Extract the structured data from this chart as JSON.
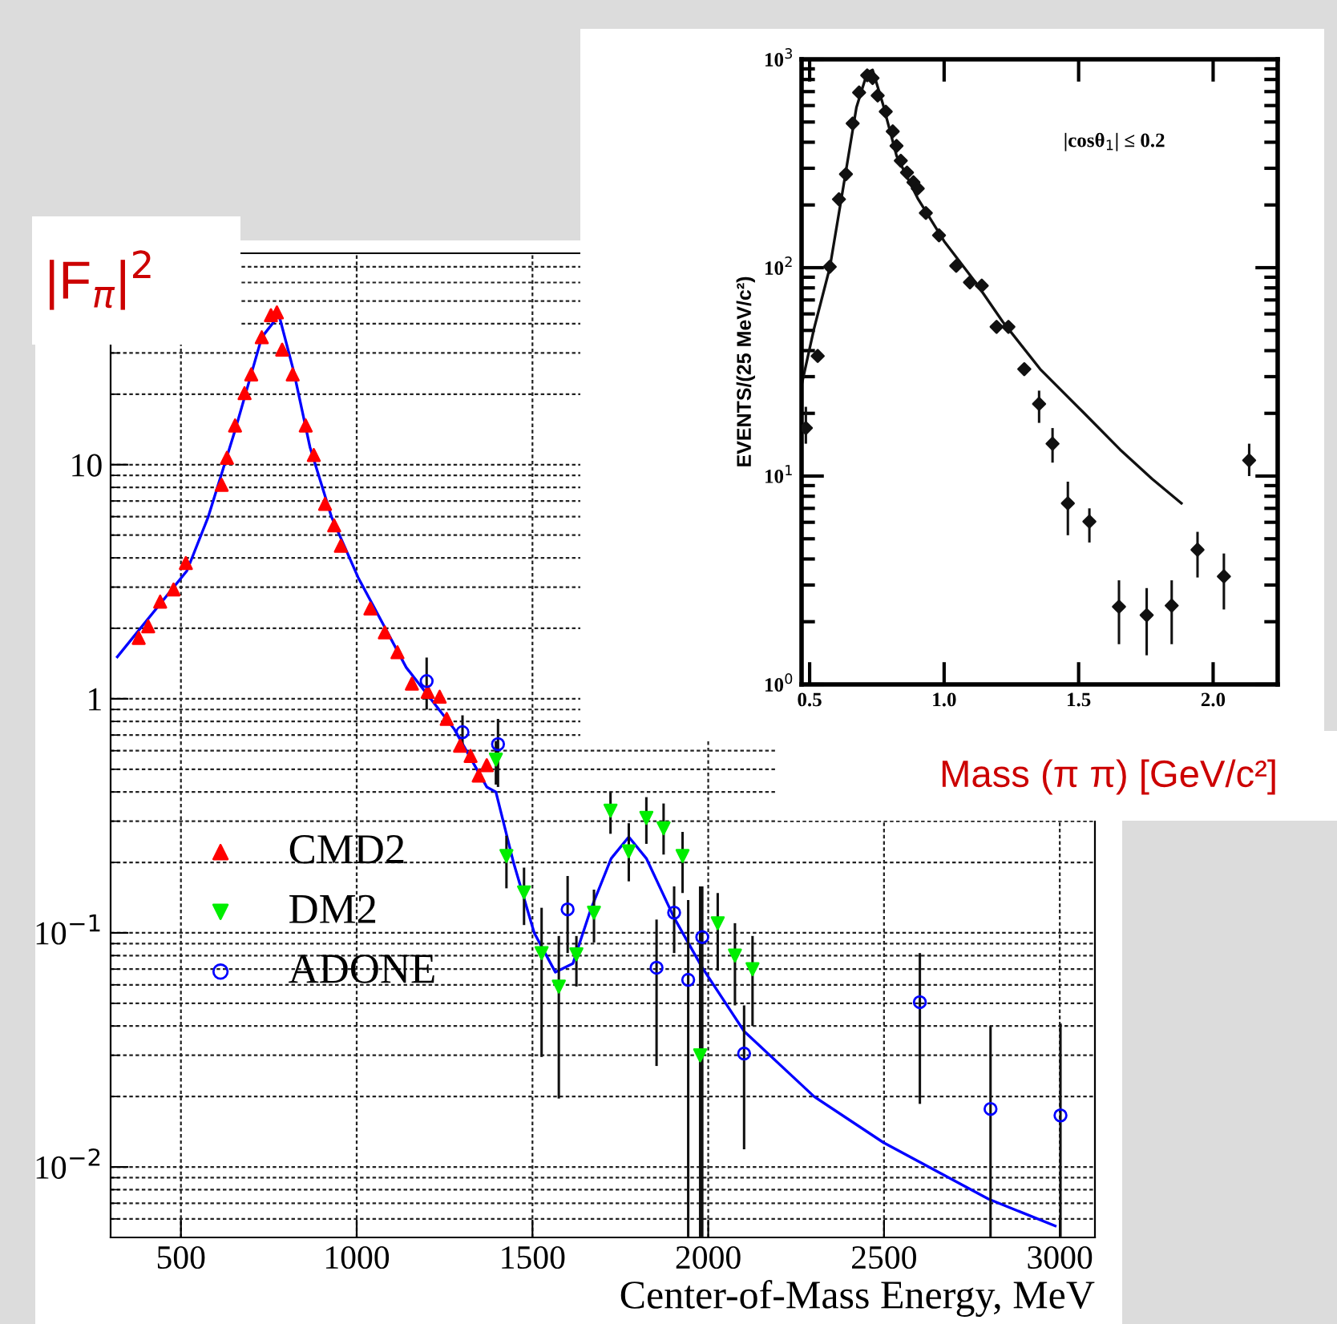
{
  "chart_data": [
    {
      "type": "scatter",
      "ylabel": "|F$_{π}$|$^{2}$",
      "xlabel": "Center-of-Mass Energy, MeV",
      "log": "y",
      "xlim": [
        300,
        3100
      ],
      "ylim": [
        0.005,
        80
      ],
      "xticks": [
        500,
        1000,
        1500,
        2000,
        2500,
        3000
      ],
      "yticks": [
        {
          "value": 0.01,
          "label": "10$^{−2}$"
        },
        {
          "value": 0.1,
          "label": "10$^{−1}$"
        },
        1,
        10
      ],
      "grid": true,
      "legend": "left",
      "series": [
        {
          "name": "CMD2",
          "marker": "triangle",
          "color": "#ff0000",
          "x": [
            380,
            407,
            441,
            479,
            514,
            616,
            631,
            654,
            681,
            700,
            730,
            756,
            773,
            788,
            818,
            855,
            878,
            910,
            936,
            955,
            1039,
            1080,
            1116,
            1157,
            1202,
            1236,
            1256,
            1294,
            1324,
            1347,
            1370
          ],
          "values": [
            1.82,
            2.04,
            2.6,
            2.93,
            3.8,
            8.2,
            10.7,
            14.7,
            20.2,
            24.3,
            35,
            43.5,
            44.7,
            31,
            24.3,
            14.7,
            11,
            6.8,
            5.5,
            4.5,
            2.43,
            1.92,
            1.58,
            1.16,
            1.07,
            1.02,
            0.82,
            0.63,
            0.57,
            0.47,
            0.52
          ]
        },
        {
          "name": "DM2",
          "marker": "triangle_down",
          "color": "#00ee00",
          "x": [
            1396,
            1426,
            1476,
            1526,
            1575,
            1625,
            1675,
            1722,
            1774,
            1824,
            1873,
            1927,
            1977,
            2027,
            2076,
            2126
          ],
          "values": [
            0.55,
            0.213,
            0.149,
            0.082,
            0.059,
            0.081,
            0.122,
            0.333,
            0.223,
            0.31,
            0.28,
            0.213,
            0.03,
            0.11,
            0.08,
            0.07
          ],
          "errors": [
            [
              0.43,
              0.66
            ],
            [
              0.155,
              0.26
            ],
            [
              0.108,
              0.19
            ],
            [
              0.0295,
              0.128
            ],
            [
              0.0196,
              0.097
            ],
            [
              0.059,
              0.097
            ],
            [
              0.091,
              0.153
            ],
            [
              0.265,
              0.4
            ],
            [
              0.166,
              0.294
            ],
            [
              0.24,
              0.38
            ],
            [
              0.216,
              0.357
            ],
            [
              0.148,
              0.27
            ],
            [
              0.005,
              0.158
            ],
            [
              0.069,
              0.148
            ],
            [
              0.049,
              0.11
            ],
            [
              0.04,
              0.097
            ]
          ]
        },
        {
          "name": "ADONE",
          "marker": "circle",
          "color": "#0000ff",
          "x": [
            1199,
            1301,
            1402,
            1600,
            1853,
            1903,
            1943,
            1983,
            2102,
            2602,
            2803,
            3002
          ],
          "values": [
            1.19,
            0.72,
            0.64,
            0.126,
            0.071,
            0.122,
            0.063,
            0.096,
            0.0305,
            0.0506,
            0.0177,
            0.0166
          ],
          "errors": [
            [
              0.9,
              1.5
            ],
            [
              0.6,
              0.85
            ],
            [
              0.42,
              0.82
            ],
            [
              0.082,
              0.175
            ],
            [
              0.027,
              0.114
            ],
            [
              0.082,
              0.158
            ],
            [
              0.005,
              0.138
            ],
            [
              0.005,
              0.158
            ],
            [
              0.0119,
              0.049
            ],
            [
              0.0186,
              0.082
            ],
            [
              0.005,
              0.04
            ],
            [
              0.005,
              0.041
            ]
          ]
        },
        {
          "type": "line",
          "color": "#0000ff",
          "x": [
            319,
            517,
            578,
            654,
            730,
            779,
            821,
            867,
            928,
            1004,
            1141,
            1278,
            1370,
            1396,
            1446,
            1505,
            1565,
            1615,
            1665,
            1724,
            1774,
            1824,
            1903,
            1983,
            2102,
            2301,
            2499,
            2797,
            2987
          ],
          "values": [
            1.51,
            3.52,
            6.0,
            14,
            35,
            43.5,
            25,
            11.9,
            6.0,
            3.3,
            1.36,
            0.74,
            0.42,
            0.4,
            0.2,
            0.1,
            0.068,
            0.074,
            0.125,
            0.208,
            0.257,
            0.208,
            0.116,
            0.071,
            0.038,
            0.02,
            0.0127,
            0.0073,
            0.0056
          ]
        }
      ]
    },
    {
      "type": "scatter",
      "xlabel": "Mass (π π) [GeV/c²]",
      "ylabel": "EVENTS/(25 MeV/c²)",
      "log": "y",
      "xlim": [
        0.47,
        2.24
      ],
      "ylim": [
        1,
        1000
      ],
      "xticks": [
        0.5,
        {
          "value": 1,
          "label": "1.0"
        },
        1.5,
        {
          "value": 2,
          "label": "2.0"
        }
      ],
      "yticks": [
        {
          "value": 1,
          "label": "10$^{0}$"
        },
        {
          "value": 10,
          "label": "10$^{1}$"
        },
        {
          "value": 100,
          "label": "10$^{2}$"
        },
        {
          "value": 1000,
          "label": "10$^{3}$"
        }
      ],
      "annotations": [
        "|cosθ$_{1}$| ≤ 0.2"
      ],
      "series": [
        {
          "marker": "diamond",
          "color": "#111111",
          "x": [
            0.486,
            0.53,
            0.575,
            0.609,
            0.635,
            0.66,
            0.684,
            0.714,
            0.734,
            0.753,
            0.783,
            0.809,
            0.823,
            0.839,
            0.862,
            0.886,
            0.902,
            0.932,
            0.981,
            1.045,
            1.096,
            1.14,
            1.195,
            1.239,
            1.298,
            1.353,
            1.403,
            1.46,
            1.54,
            1.65,
            1.753,
            1.846,
            1.942,
            2.04,
            2.134
          ],
          "values": [
            17,
            37.7,
            101,
            213,
            281,
            492,
            693,
            838,
            813,
            670,
            561,
            451,
            384,
            326,
            286,
            257,
            240,
            183,
            143,
            102,
            85,
            82,
            52,
            52,
            32.6,
            22.2,
            14.3,
            7.4,
            6.05,
            2.36,
            2.15,
            2.39,
            4.43,
            3.3,
            11.9
          ],
          "errors": [
            [
              14.3,
              21.5
            ],
            null,
            null,
            null,
            null,
            null,
            null,
            null,
            null,
            null,
            null,
            null,
            null,
            null,
            null,
            null,
            null,
            null,
            null,
            null,
            null,
            null,
            null,
            null,
            null,
            [
              18,
              25.7
            ],
            [
              11.6,
              17
            ],
            [
              5.2,
              9.4
            ],
            [
              4.8,
              7
            ],
            [
              1.56,
              3.16
            ],
            [
              1.38,
              2.9
            ],
            [
              1.56,
              3.16
            ],
            [
              3.26,
              5.4
            ],
            [
              2.29,
              4.25
            ],
            [
              10,
              14.3
            ]
          ]
        },
        {
          "type": "line",
          "color": "#111111",
          "x": [
            0.47,
            0.516,
            0.575,
            0.625,
            0.674,
            0.714,
            0.734,
            0.773,
            0.823,
            0.902,
            1.0,
            1.12,
            1.218,
            1.357,
            1.516,
            1.654,
            1.773,
            1.882
          ],
          "values": [
            27.3,
            50.7,
            100,
            243,
            588,
            863,
            889,
            606,
            345,
            215,
            134,
            84,
            55,
            32.6,
            20.3,
            13.4,
            9.7,
            7.4
          ]
        }
      ]
    }
  ]
}
